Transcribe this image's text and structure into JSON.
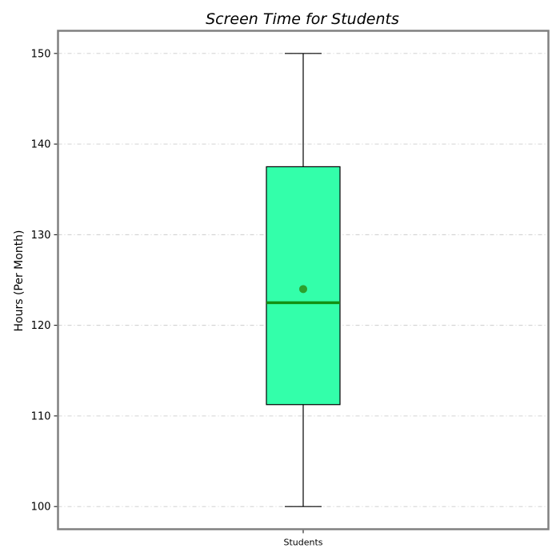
{
  "chart_data": {
    "type": "box",
    "title": "Screen Time for Students",
    "xlabel": "",
    "ylabel": "Hours (Per Month)",
    "categories": [
      "Students"
    ],
    "boxes": [
      {
        "category": "Students",
        "whisker_low": 100,
        "q1": 111.25,
        "median": 122.5,
        "mean": 124,
        "q3": 137.5,
        "whisker_high": 150
      }
    ],
    "ylim": [
      97.5,
      152.5
    ],
    "yticks": [
      100,
      110,
      120,
      130,
      140,
      150
    ],
    "grid": true,
    "colors": {
      "box_fill": "#33ffaa",
      "box_edge": "#000000",
      "median": "#138f13",
      "mean_marker": "#2ca02c",
      "whisker": "#000000",
      "grid": "#cccccc",
      "frame": "#808080"
    }
  }
}
